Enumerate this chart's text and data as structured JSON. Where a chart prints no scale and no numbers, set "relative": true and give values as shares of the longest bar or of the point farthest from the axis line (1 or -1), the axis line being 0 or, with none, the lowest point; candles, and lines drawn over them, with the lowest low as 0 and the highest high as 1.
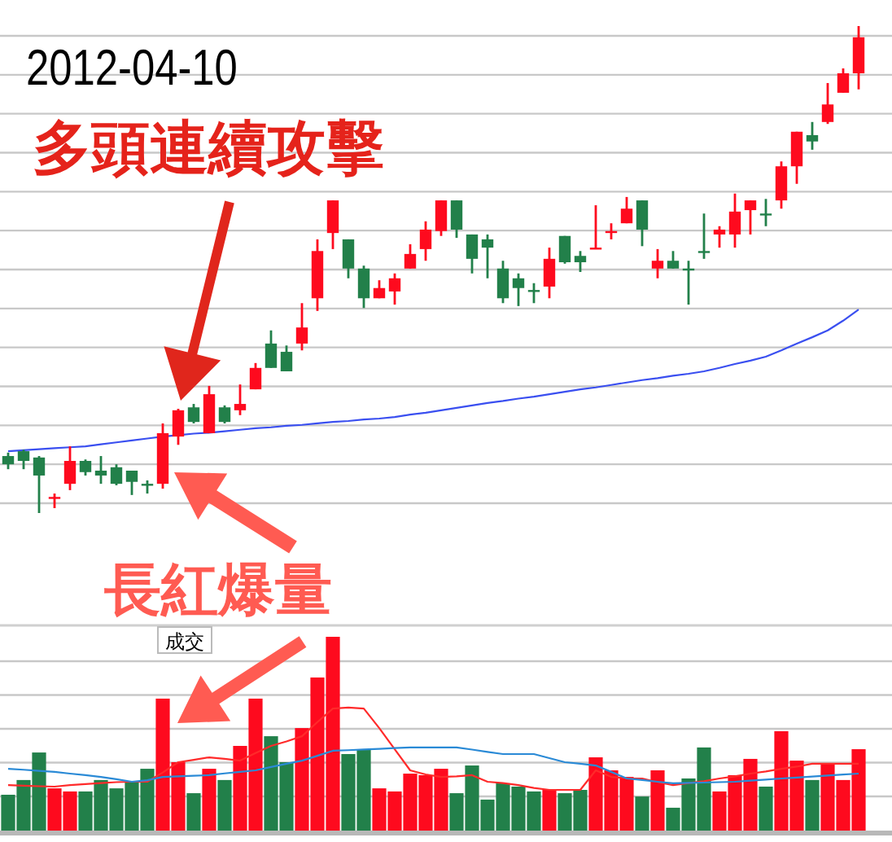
{
  "chart_data": [
    {
      "type": "candlestick",
      "relative": true,
      "grid": "y",
      "categories": [
        null,
        null,
        null,
        null,
        null,
        null,
        null,
        null,
        null,
        null,
        null,
        null,
        null,
        null,
        null,
        null,
        null,
        null,
        null,
        null,
        null,
        null,
        null,
        null,
        null,
        null,
        null,
        null,
        null,
        null,
        null,
        null,
        null,
        null,
        null,
        null,
        null,
        null,
        null,
        null,
        null,
        null,
        null,
        null,
        null,
        null,
        null,
        null,
        null,
        null,
        null,
        null,
        null,
        null,
        null,
        null
      ],
      "ohlc": [
        [
          0.117,
          0.124,
          0.09,
          0.1
        ],
        [
          0.127,
          0.13,
          0.09,
          0.107
        ],
        [
          0.114,
          0.117,
          0,
          0.077
        ],
        [
          0.03,
          0.04,
          0.01,
          0.033
        ],
        [
          0.06,
          0.137,
          0.047,
          0.107
        ],
        [
          0.107,
          0.11,
          0.077,
          0.084
        ],
        [
          0.087,
          0.117,
          0.06,
          0.077
        ],
        [
          0.094,
          0.1,
          0.057,
          0.06
        ],
        [
          0.087,
          0.087,
          0.037,
          0.064
        ],
        [
          0.06,
          0.067,
          0.04,
          0.057
        ],
        [
          0.06,
          0.184,
          0.05,
          0.164
        ],
        [
          0.157,
          0.214,
          0.14,
          0.211
        ],
        [
          0.217,
          0.224,
          0.184,
          0.187
        ],
        [
          0.164,
          0.261,
          0.164,
          0.244
        ],
        [
          0.217,
          0.221,
          0.184,
          0.187
        ],
        [
          0.211,
          0.264,
          0.201,
          0.224
        ],
        [
          0.254,
          0.308,
          0.254,
          0.298
        ],
        [
          0.348,
          0.375,
          0.298,
          0.298
        ],
        [
          0.331,
          0.344,
          0.291,
          0.291
        ],
        [
          0.348,
          0.431,
          0.334,
          0.381
        ],
        [
          0.441,
          0.562,
          0.415,
          0.538
        ],
        [
          0.575,
          0.642,
          0.542,
          0.642
        ],
        [
          0.562,
          0.562,
          0.482,
          0.502
        ],
        [
          0.502,
          0.508,
          0.421,
          0.441
        ],
        [
          0.441,
          0.478,
          0.441,
          0.462
        ],
        [
          0.455,
          0.492,
          0.428,
          0.482
        ],
        [
          0.502,
          0.552,
          0.502,
          0.532
        ],
        [
          0.542,
          0.599,
          0.518,
          0.582
        ],
        [
          0.579,
          0.642,
          0.569,
          0.642
        ],
        [
          0.642,
          0.642,
          0.565,
          0.582
        ],
        [
          0.572,
          0.572,
          0.492,
          0.522
        ],
        [
          0.562,
          0.572,
          0.482,
          0.545
        ],
        [
          0.502,
          0.518,
          0.431,
          0.441
        ],
        [
          0.482,
          0.492,
          0.425,
          0.462
        ],
        [
          0.458,
          0.472,
          0.431,
          0.455
        ],
        [
          0.465,
          0.545,
          0.441,
          0.522
        ],
        [
          0.569,
          0.569,
          0.512,
          0.515
        ],
        [
          0.528,
          0.538,
          0.495,
          0.515
        ],
        [
          0.542,
          0.632,
          0.542,
          0.545
        ],
        [
          0.575,
          0.595,
          0.562,
          0.579
        ],
        [
          0.595,
          0.649,
          0.595,
          0.625
        ],
        [
          0.642,
          0.642,
          0.548,
          0.582
        ],
        [
          0.502,
          0.542,
          0.482,
          0.518
        ],
        [
          0.518,
          0.538,
          0.502,
          0.502
        ],
        [
          0.502,
          0.518,
          0.428,
          0.498
        ],
        [
          0.538,
          0.615,
          0.522,
          0.535
        ],
        [
          0.572,
          0.589,
          0.545,
          0.582
        ],
        [
          0.572,
          0.656,
          0.545,
          0.619
        ],
        [
          0.622,
          0.642,
          0.572,
          0.642
        ],
        [
          0.615,
          0.645,
          0.589,
          0.612
        ],
        [
          0.642,
          0.722,
          0.625,
          0.712
        ],
        [
          0.712,
          0.783,
          0.676,
          0.783
        ],
        [
          0.776,
          0.803,
          0.746,
          0.763
        ],
        [
          0.803,
          0.883,
          0.799,
          0.839
        ],
        [
          0.863,
          0.913,
          0.863,
          0.903
        ],
        [
          0.903,
          1.0,
          0.87,
          0.977
        ]
      ],
      "colors": [
        "#22804a",
        "#22804a",
        "#22804a",
        "#fe0a1e",
        "#fe0a1e",
        "#22804a",
        "#22804a",
        "#22804a",
        "#22804a",
        "#22804a",
        "#fe0a1e",
        "#fe0a1e",
        "#22804a",
        "#fe0a1e",
        "#22804a",
        "#fe0a1e",
        "#fe0a1e",
        "#22804a",
        "#22804a",
        "#fe0a1e",
        "#fe0a1e",
        "#fe0a1e",
        "#22804a",
        "#22804a",
        "#fe0a1e",
        "#fe0a1e",
        "#fe0a1e",
        "#fe0a1e",
        "#fe0a1e",
        "#22804a",
        "#22804a",
        "#22804a",
        "#22804a",
        "#22804a",
        "#22804a",
        "#fe0a1e",
        "#22804a",
        "#22804a",
        "#fe0a1e",
        "#fe0a1e",
        "#fe0a1e",
        "#22804a",
        "#fe0a1e",
        "#22804a",
        "#22804a",
        "#22804a",
        "#fe0a1e",
        "#fe0a1e",
        "#fe0a1e",
        "#22804a",
        "#fe0a1e",
        "#fe0a1e",
        "#22804a",
        "#fe0a1e",
        "#fe0a1e",
        "#fe0a1e"
      ],
      "series": [
        {
          "type": "line",
          "color": "#3a4ff0",
          "values": [
            0.127,
            0.129,
            0.131,
            0.133,
            0.135,
            0.137,
            0.141,
            0.145,
            0.149,
            0.153,
            0.157,
            0.16,
            0.163,
            0.165,
            0.168,
            0.171,
            0.174,
            0.176,
            0.179,
            0.181,
            0.184,
            0.187,
            0.189,
            0.192,
            0.194,
            0.197,
            0.202,
            0.206,
            0.211,
            0.216,
            0.221,
            0.226,
            0.23,
            0.235,
            0.239,
            0.244,
            0.249,
            0.254,
            0.258,
            0.263,
            0.268,
            0.273,
            0.277,
            0.282,
            0.286,
            0.291,
            0.298,
            0.306,
            0.313,
            0.321,
            0.334,
            0.348,
            0.361,
            0.375,
            0.395,
            0.418
          ]
        }
      ],
      "annotations": [
        "2012-04-10",
        "多頭連續攻擊",
        "長紅爆量"
      ]
    },
    {
      "type": "bar",
      "relative": true,
      "grid": "y",
      "title": "成交",
      "categories": [
        null,
        null,
        null,
        null,
        null,
        null,
        null,
        null,
        null,
        null,
        null,
        null,
        null,
        null,
        null,
        null,
        null,
        null,
        null,
        null,
        null,
        null,
        null,
        null,
        null,
        null,
        null,
        null,
        null,
        null,
        null,
        null,
        null,
        null,
        null,
        null,
        null,
        null,
        null,
        null,
        null,
        null,
        null,
        null,
        null,
        null,
        null,
        null,
        null,
        null,
        null,
        null,
        null,
        null,
        null,
        null
      ],
      "series": [
        {
          "type": "bar",
          "colors": [
            "#22804a",
            "#22804a",
            "#22804a",
            "#fe0a1e",
            "#fe0a1e",
            "#22804a",
            "#22804a",
            "#22804a",
            "#22804a",
            "#22804a",
            "#fe0a1e",
            "#fe0a1e",
            "#22804a",
            "#fe0a1e",
            "#22804a",
            "#fe0a1e",
            "#fe0a1e",
            "#22804a",
            "#22804a",
            "#fe0a1e",
            "#fe0a1e",
            "#fe0a1e",
            "#22804a",
            "#22804a",
            "#fe0a1e",
            "#fe0a1e",
            "#fe0a1e",
            "#fe0a1e",
            "#fe0a1e",
            "#22804a",
            "#22804a",
            "#22804a",
            "#22804a",
            "#22804a",
            "#22804a",
            "#fe0a1e",
            "#22804a",
            "#22804a",
            "#fe0a1e",
            "#fe0a1e",
            "#fe0a1e",
            "#22804a",
            "#fe0a1e",
            "#22804a",
            "#22804a",
            "#22804a",
            "#fe0a1e",
            "#fe0a1e",
            "#fe0a1e",
            "#22804a",
            "#fe0a1e",
            "#fe0a1e",
            "#22804a",
            "#fe0a1e",
            "#fe0a1e",
            "#fe0a1e"
          ],
          "values": [
            0.185,
            0.261,
            0.403,
            0.218,
            0.202,
            0.202,
            0.261,
            0.218,
            0.252,
            0.319,
            0.681,
            0.353,
            0.193,
            0.319,
            0.261,
            0.437,
            0.681,
            0.487,
            0.353,
            0.529,
            0.79,
            1,
            0.395,
            0.42,
            0.218,
            0.202,
            0.294,
            0.286,
            0.319,
            0.193,
            0.336,
            0.16,
            0.244,
            0.227,
            0.202,
            0.21,
            0.193,
            0.21,
            0.378,
            0.311,
            0.277,
            0.176,
            0.311,
            0.118,
            0.269,
            0.429,
            0.202,
            0.286,
            0.37,
            0.227,
            0.513,
            0.361,
            0.261,
            0.345,
            0.261,
            0.42
          ]
        },
        {
          "type": "line",
          "color": "#ff2a2a",
          "values": [
            0.235,
            0.232,
            0.229,
            0.227,
            0.235,
            0.24,
            0.245,
            0.25,
            0.252,
            0.252,
            0.3,
            0.353,
            0.365,
            0.378,
            0.37,
            0.361,
            0.4,
            0.437,
            0.46,
            0.487,
            0.56,
            0.63,
            0.635,
            0.63,
            0.529,
            0.42,
            0.311,
            0.29,
            0.277,
            0.28,
            0.286,
            0.252,
            0.245,
            0.235,
            0.22,
            0.21,
            0.21,
            0.21,
            0.311,
            0.277,
            0.27,
            0.269,
            0.25,
            0.235,
            0.245,
            0.255,
            0.269,
            0.28,
            0.294,
            0.305,
            0.319,
            0.33,
            0.345,
            0.345,
            0.345,
            0.345
          ]
        },
        {
          "type": "line",
          "color": "#2a8ad6",
          "values": [
            0.319,
            0.314,
            0.308,
            0.303,
            0.294,
            0.286,
            0.277,
            0.265,
            0.252,
            0.26,
            0.277,
            0.28,
            0.283,
            0.286,
            0.295,
            0.303,
            0.311,
            0.328,
            0.345,
            0.361,
            0.386,
            0.412,
            0.415,
            0.419,
            0.422,
            0.426,
            0.429,
            0.429,
            0.429,
            0.429,
            0.418,
            0.406,
            0.395,
            0.395,
            0.395,
            0.374,
            0.353,
            0.345,
            0.336,
            0.303,
            0.269,
            0.261,
            0.252,
            0.244,
            0.246,
            0.248,
            0.25,
            0.252,
            0.258,
            0.263,
            0.269,
            0.274,
            0.279,
            0.284,
            0.289,
            0.294
          ]
        }
      ]
    }
  ]
}
